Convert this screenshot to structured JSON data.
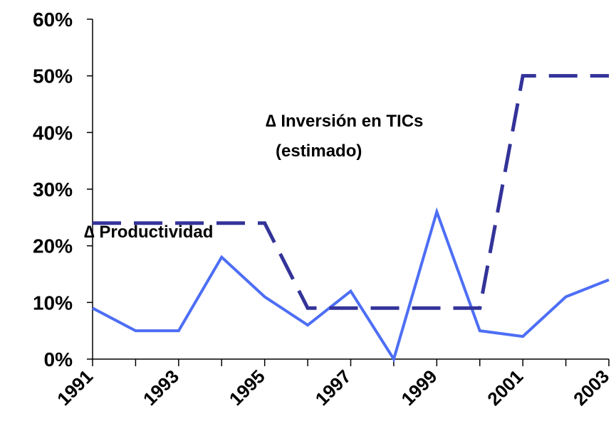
{
  "chart_data": {
    "type": "line",
    "x": [
      1991,
      1992,
      1993,
      1994,
      1995,
      1996,
      1997,
      1998,
      1999,
      2000,
      2001,
      2002,
      2003
    ],
    "xlim": [
      1991,
      2003
    ],
    "xticks": [
      1991,
      1993,
      1995,
      1997,
      1999,
      2001,
      2003
    ],
    "ylim": [
      0,
      60
    ],
    "yticks": [
      {
        "value": 0,
        "label": "0%"
      },
      {
        "value": 10,
        "label": "10%"
      },
      {
        "value": 20,
        "label": "20%"
      },
      {
        "value": 30,
        "label": "30%"
      },
      {
        "value": 40,
        "label": "40%"
      },
      {
        "value": 50,
        "label": "50%"
      },
      {
        "value": 60,
        "label": "60%"
      }
    ],
    "series": [
      {
        "name": "∆ Productividad",
        "color": "#4d6ef5",
        "style": "solid",
        "values": [
          9,
          5,
          5,
          18,
          11,
          6,
          12,
          0,
          26,
          5,
          4,
          11,
          14
        ]
      },
      {
        "name": "∆ Inversión en TICs",
        "color": "#333399",
        "style": "dashed",
        "values": [
          24,
          24,
          24,
          24,
          24,
          9,
          9,
          9,
          9,
          9,
          50,
          50,
          50
        ]
      }
    ],
    "annotations": [
      "(estimado)"
    ]
  }
}
